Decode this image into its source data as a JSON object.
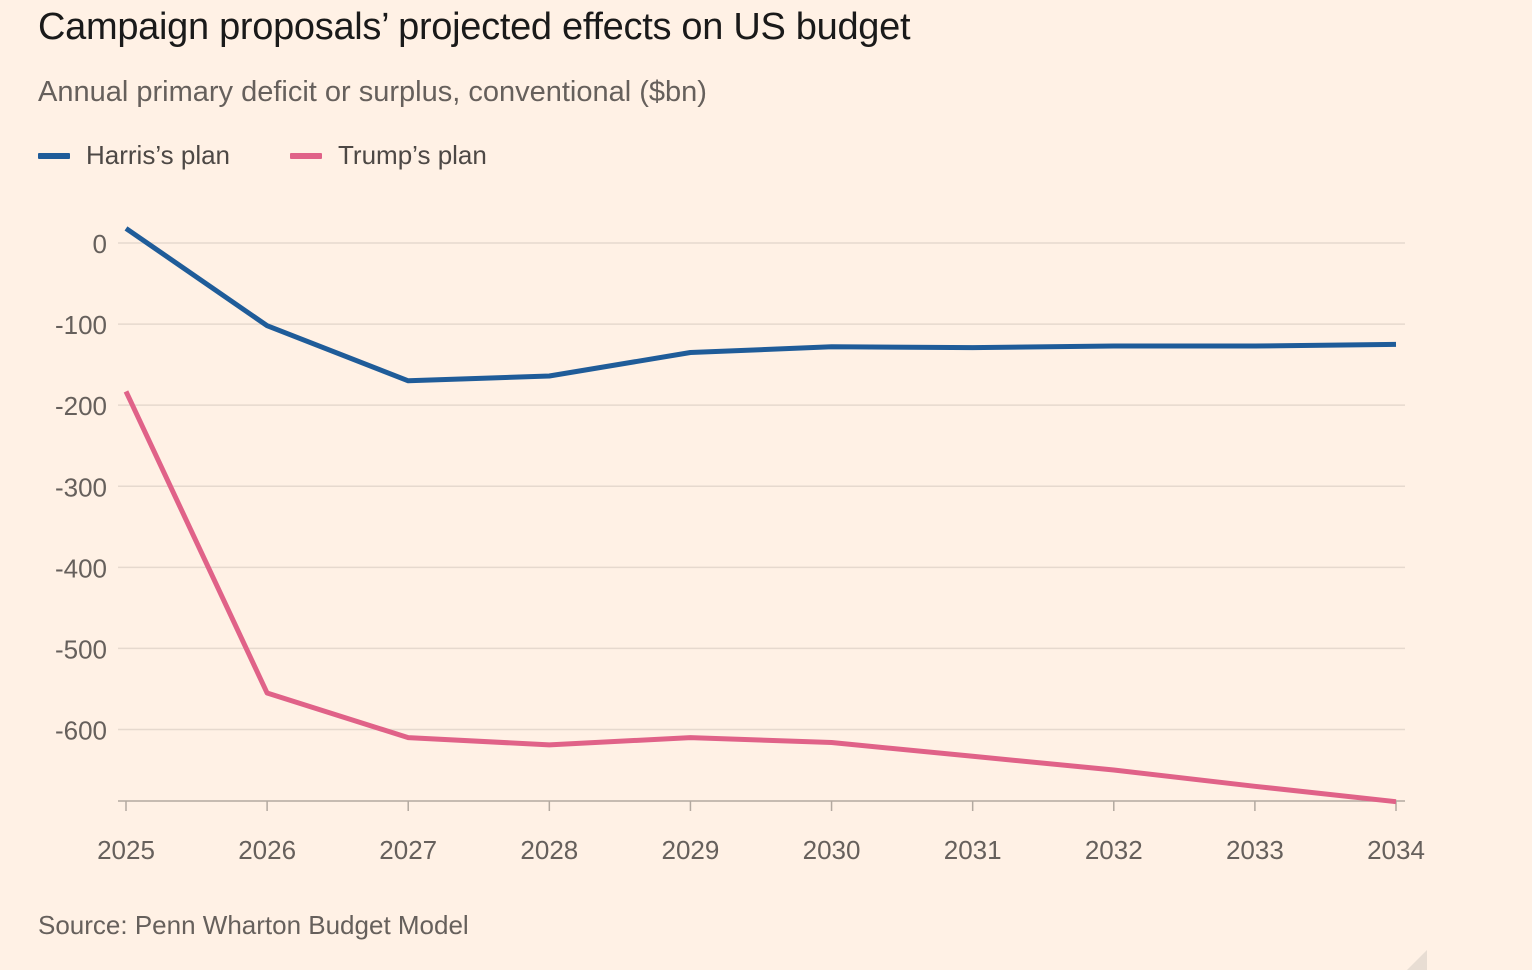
{
  "chart_data": {
    "type": "line",
    "title": "Campaign proposals’ projected effects on US budget",
    "subtitle": "Annual primary deficit or surplus, conventional ($bn)",
    "source": "Source: Penn Wharton Budget Model",
    "x": [
      "2025",
      "2026",
      "2027",
      "2028",
      "2029",
      "2030",
      "2031",
      "2032",
      "2033",
      "2034"
    ],
    "y_ticks": [
      0,
      -100,
      -200,
      -300,
      -400,
      -500,
      -600
    ],
    "y_tick_labels": [
      "0",
      "-100",
      "-200",
      "-300",
      "-400",
      "-500",
      "-600"
    ],
    "ylim": [
      -690,
      20
    ],
    "grid": true,
    "legend_placement": "top-left",
    "series": [
      {
        "name": "Harris’s plan",
        "color": "#1f5c99",
        "values": [
          18,
          -102,
          -170,
          -164,
          -135,
          -128,
          -129,
          -127,
          -127,
          -125
        ]
      },
      {
        "name": "Trump’s plan",
        "color": "#e06288",
        "values": [
          -183,
          -555,
          -610,
          -619,
          -610,
          -616,
          -633,
          -650,
          -670,
          -689
        ]
      }
    ]
  }
}
